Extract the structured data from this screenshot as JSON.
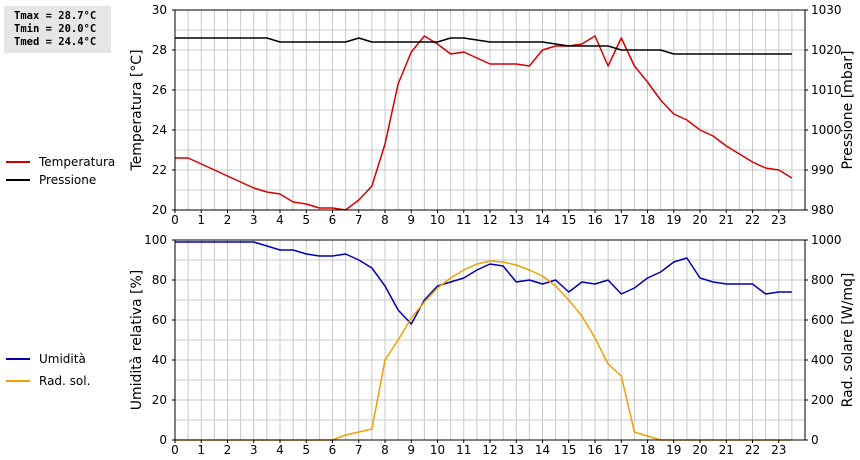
{
  "stats": {
    "tmax": "Tmax = 28.7°C",
    "tmin": "Tmin = 20.0°C",
    "tmed": "Tmed = 24.4°C"
  },
  "colors": {
    "temperature": "#d40000",
    "pressure": "#000000",
    "humidity": "#0000b0",
    "radiation": "#f0a000",
    "grid": "#c8c8c8"
  },
  "chart_data": [
    {
      "type": "line",
      "legend_placement": "left",
      "grid": true,
      "x_ticks": [
        "0",
        "1",
        "2",
        "3",
        "4",
        "5",
        "6",
        "7",
        "8",
        "9",
        "10",
        "11",
        "12",
        "13",
        "14",
        "15",
        "16",
        "17",
        "18",
        "19",
        "20",
        "21",
        "22",
        "23"
      ],
      "xlim": [
        0,
        24
      ],
      "ylabel_left": "Temperatura [°C]",
      "ylim_left": [
        20,
        30
      ],
      "yticks_left": [
        "20",
        "22",
        "24",
        "26",
        "28",
        "30"
      ],
      "ylabel_right": "Pressione [mbar]",
      "ylim_right": [
        980,
        1030
      ],
      "yticks_right": [
        "980",
        "990",
        "1000",
        "1010",
        "1020",
        "1030"
      ],
      "series": [
        {
          "name": "Temperatura",
          "axis": "left",
          "color": "#d40000",
          "x": [
            0,
            0.5,
            1,
            1.5,
            2,
            2.5,
            3,
            3.5,
            4,
            4.5,
            5,
            5.5,
            6,
            6.5,
            7,
            7.5,
            8,
            8.5,
            9,
            9.5,
            10,
            10.5,
            11,
            11.5,
            12,
            12.5,
            13,
            13.5,
            14,
            14.5,
            15,
            15.5,
            16,
            16.5,
            17,
            17.5,
            18,
            18.5,
            19,
            19.5,
            20,
            20.5,
            21,
            21.5,
            22,
            22.5,
            23,
            23.5
          ],
          "y": [
            22.6,
            22.6,
            22.3,
            22.0,
            21.7,
            21.4,
            21.1,
            20.9,
            20.8,
            20.4,
            20.3,
            20.1,
            20.1,
            20.0,
            20.5,
            21.2,
            23.3,
            26.3,
            27.9,
            28.7,
            28.3,
            27.8,
            27.9,
            27.6,
            27.3,
            27.3,
            27.3,
            27.2,
            28.0,
            28.2,
            28.2,
            28.3,
            28.7,
            27.2,
            28.6,
            27.2,
            26.4,
            25.5,
            24.8,
            24.5,
            24.0,
            23.7,
            23.2,
            22.8,
            22.4,
            22.1,
            22.0,
            21.6
          ]
        },
        {
          "name": "Pressione",
          "axis": "right",
          "color": "#000000",
          "x": [
            0,
            1,
            2,
            3,
            3.5,
            4,
            5,
            6,
            6.5,
            7,
            7.5,
            8,
            9,
            10,
            10.5,
            11,
            12,
            13,
            14,
            15,
            16,
            16.5,
            17,
            18,
            18.5,
            19,
            20,
            21,
            22,
            23,
            23.5
          ],
          "y": [
            1023,
            1023,
            1023,
            1023,
            1023,
            1022,
            1022,
            1022,
            1022,
            1023,
            1022,
            1022,
            1022,
            1022,
            1023,
            1023,
            1022,
            1022,
            1022,
            1021,
            1021,
            1021,
            1020,
            1020,
            1020,
            1019,
            1019,
            1019,
            1019,
            1019,
            1019
          ]
        }
      ]
    },
    {
      "type": "line",
      "legend_placement": "left",
      "grid": true,
      "x_ticks": [
        "0",
        "1",
        "2",
        "3",
        "4",
        "5",
        "6",
        "7",
        "8",
        "9",
        "10",
        "11",
        "12",
        "13",
        "14",
        "15",
        "16",
        "17",
        "18",
        "19",
        "20",
        "21",
        "22",
        "23"
      ],
      "xlim": [
        0,
        24
      ],
      "ylabel_left": "Umidità relativa [%]",
      "ylim_left": [
        0,
        100
      ],
      "yticks_left": [
        "0",
        "20",
        "40",
        "60",
        "80",
        "100"
      ],
      "ylabel_right": "Rad. solare [W/mq]",
      "ylim_right": [
        0,
        1000
      ],
      "yticks_right": [
        "0",
        "200",
        "400",
        "600",
        "800",
        "1000"
      ],
      "series": [
        {
          "name": "Umidità",
          "axis": "left",
          "color": "#0000b0",
          "x": [
            0,
            0.5,
            1,
            1.5,
            2,
            2.5,
            3,
            3.5,
            4,
            4.5,
            5,
            5.5,
            6,
            6.5,
            7,
            7.5,
            8,
            8.5,
            9,
            9.5,
            10,
            10.5,
            11,
            11.5,
            12,
            12.5,
            13,
            13.5,
            14,
            14.5,
            15,
            15.5,
            16,
            16.5,
            17,
            17.5,
            18,
            18.5,
            19,
            19.5,
            20,
            20.5,
            21,
            21.5,
            22,
            22.5,
            23,
            23.5
          ],
          "y": [
            99,
            99,
            99,
            99,
            99,
            99,
            99,
            97,
            95,
            95,
            93,
            92,
            92,
            93,
            90,
            86,
            77,
            65,
            58,
            70,
            77,
            79,
            81,
            85,
            88,
            87,
            79,
            80,
            78,
            80,
            74,
            79,
            78,
            80,
            73,
            76,
            81,
            84,
            89,
            91,
            81,
            79,
            78,
            78,
            78,
            73,
            74,
            74
          ]
        },
        {
          "name": "Rad. sol.",
          "axis": "right",
          "color": "#f0a000",
          "x": [
            0,
            0.5,
            1,
            1.5,
            2,
            2.5,
            3,
            3.5,
            4,
            4.5,
            5,
            5.5,
            6,
            6.5,
            7,
            7.5,
            8,
            8.5,
            9,
            9.5,
            10,
            10.5,
            11,
            11.5,
            12,
            12.5,
            13,
            13.5,
            14,
            14.5,
            15,
            15.5,
            16,
            16.5,
            17,
            17.5,
            18,
            18.5,
            19,
            19.5,
            20,
            20.5,
            21,
            21.5,
            22,
            22.5,
            23,
            23.5
          ],
          "y": [
            0,
            0,
            0,
            0,
            0,
            0,
            0,
            0,
            0,
            0,
            0,
            0,
            0,
            25,
            40,
            55,
            400,
            500,
            610,
            690,
            760,
            810,
            850,
            880,
            895,
            890,
            875,
            850,
            820,
            770,
            700,
            620,
            510,
            380,
            320,
            40,
            20,
            0,
            0,
            0,
            0,
            0,
            0,
            0,
            0,
            0,
            0,
            0
          ]
        }
      ]
    }
  ]
}
